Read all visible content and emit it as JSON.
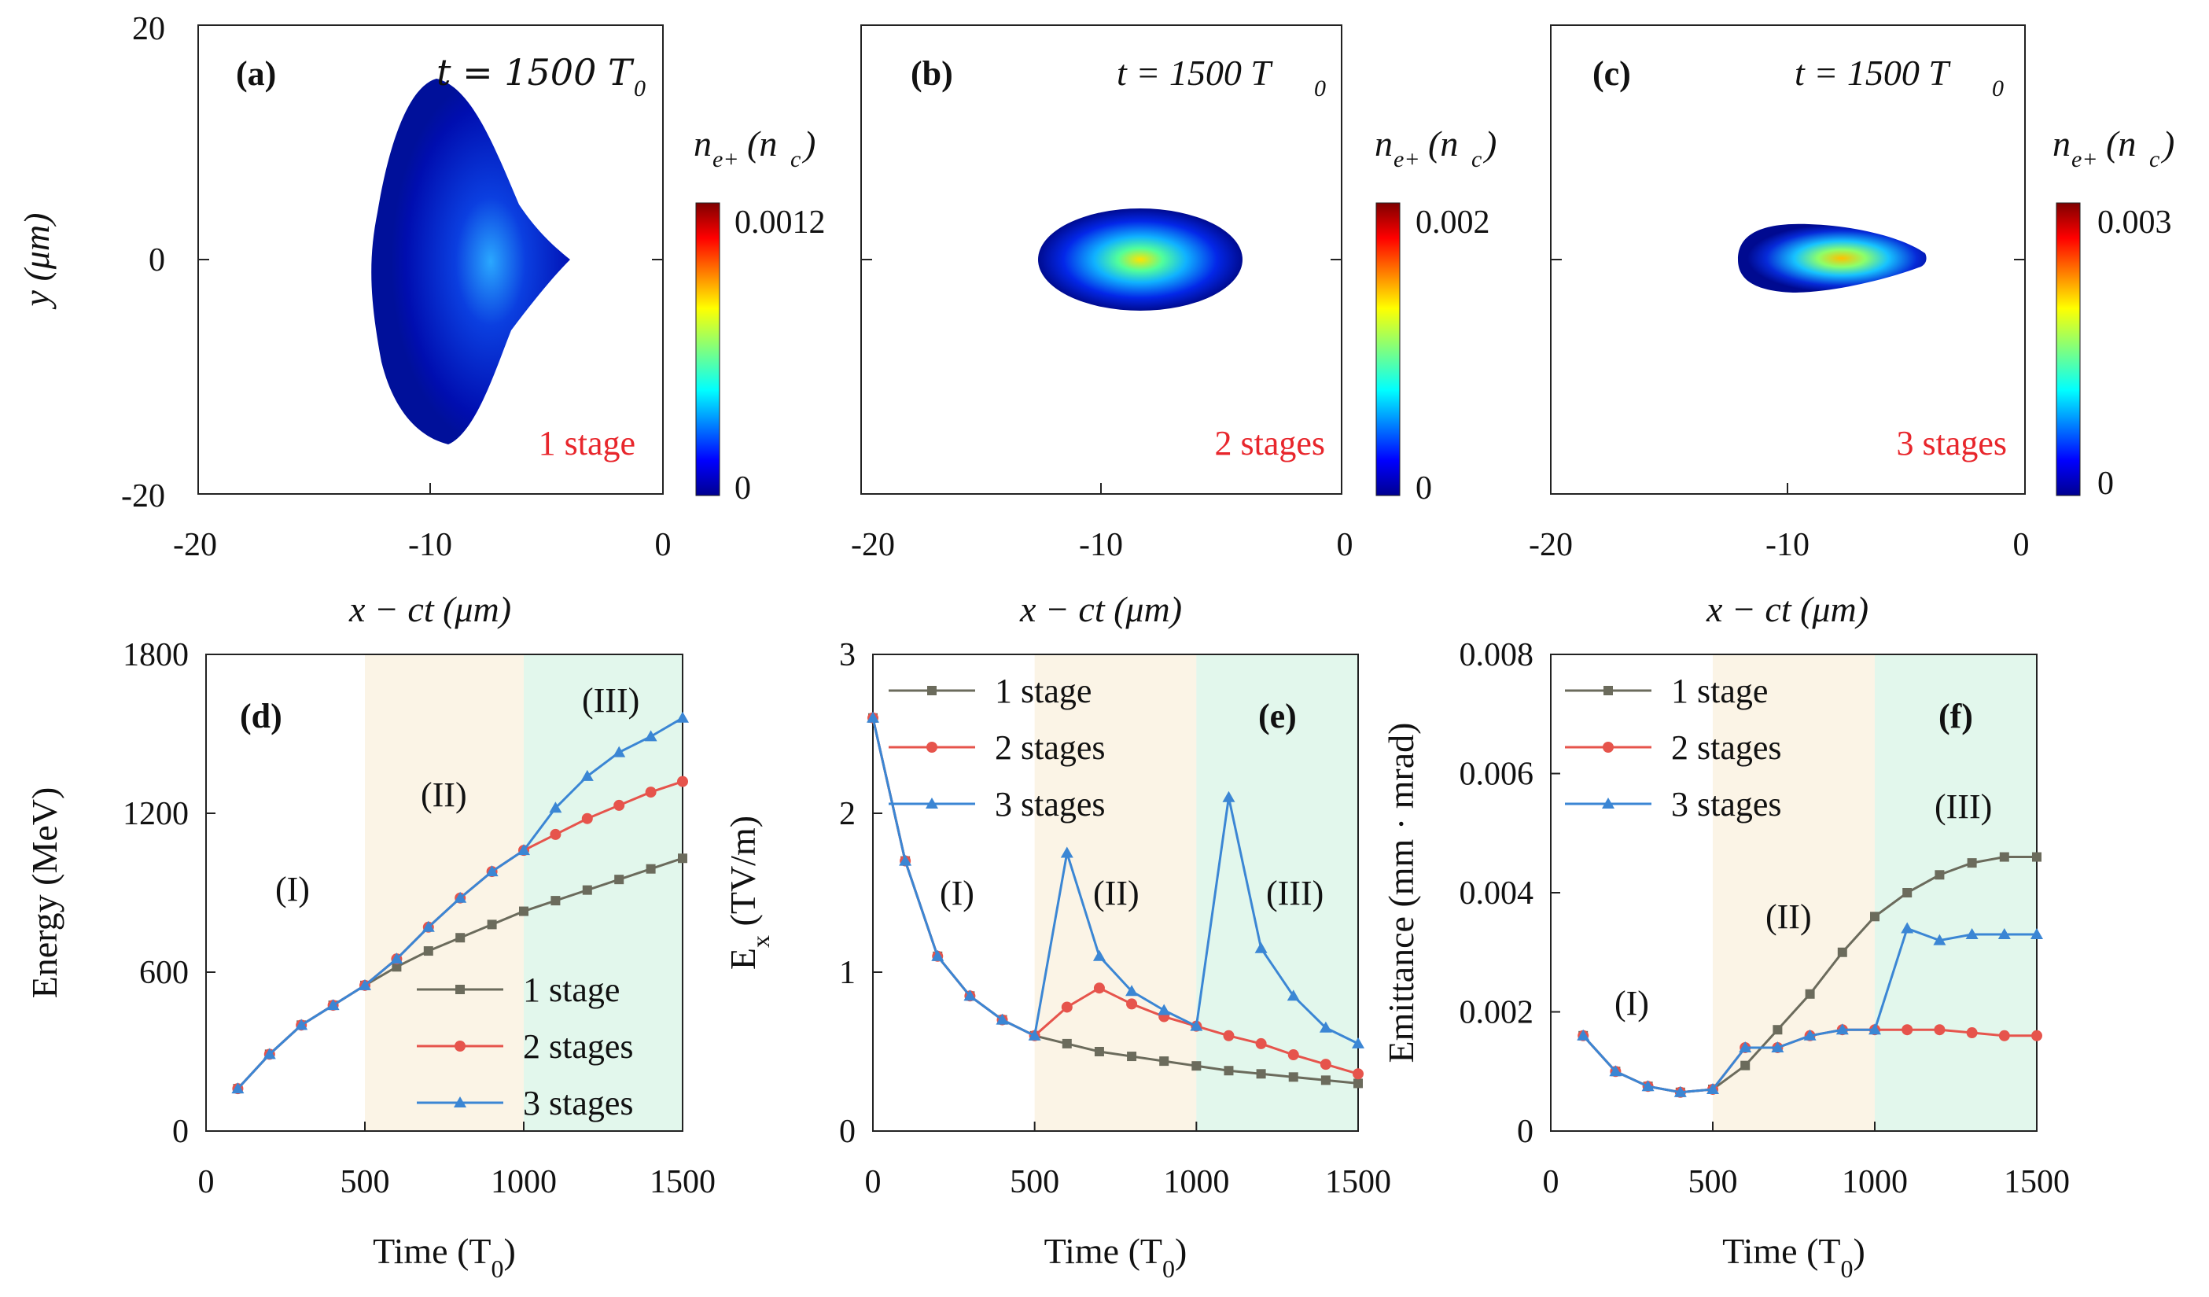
{
  "colors": {
    "stage1": "#6b6b5c",
    "stage2": "#e6544c",
    "stage3": "#3b86d4",
    "region2": "#fbf4e6",
    "region3": "#e2f7ec",
    "stage_text": "#e8262c"
  },
  "top_panels": [
    {
      "label": "(a)",
      "time": "t = 1500 T",
      "time_sub": "0",
      "stage": "1 stage",
      "cb_max": "0.0012",
      "cb_min": "0",
      "cb_title": "n",
      "cb_title_sub": "e+",
      "cb_title_unit": "(n",
      "cb_title_unit_sub": "c",
      "cb_title_close": ")"
    },
    {
      "label": "(b)",
      "time": "t = 1500 T",
      "time_sub": "0",
      "stage": "2 stages",
      "cb_max": "0.002",
      "cb_min": "0",
      "cb_title": "n",
      "cb_title_sub": "e+",
      "cb_title_unit": "(n",
      "cb_title_unit_sub": "c",
      "cb_title_close": ")"
    },
    {
      "label": "(c)",
      "time": "t = 1500 T",
      "time_sub": "0",
      "stage": "3 stages",
      "cb_max": "0.003",
      "cb_min": "0",
      "cb_title": "n",
      "cb_title_sub": "e+",
      "cb_title_unit": "(n",
      "cb_title_unit_sub": "c",
      "cb_title_close": ")"
    }
  ],
  "top_axes": {
    "xlabel": "x − ct (μm)",
    "ylabel": "y (μm)",
    "xticks": [
      "-20",
      "-10",
      "0"
    ],
    "yticks": [
      "20",
      "0",
      "-20"
    ]
  },
  "chart_data": [
    {
      "type": "line",
      "panel": "(d)",
      "xlabel": "Time (T",
      "xlabel_sub": "0",
      "xlabel_close": ")",
      "ylabel": "Energy (MeV)",
      "xlim": [
        0,
        1500
      ],
      "ylim": [
        0,
        1800
      ],
      "xticks": [
        "0",
        "500",
        "1000",
        "1500"
      ],
      "yticks": [
        "0",
        "600",
        "1200",
        "1800"
      ],
      "regions": [
        "(I)",
        "(II)",
        "(III)"
      ],
      "legend": "bottom-right",
      "series": [
        {
          "name": "1 stage",
          "x": [
            100,
            200,
            300,
            400,
            500,
            600,
            700,
            800,
            900,
            1000,
            1100,
            1200,
            1300,
            1400,
            1500
          ],
          "y": [
            160,
            290,
            400,
            475,
            550,
            620,
            680,
            730,
            780,
            830,
            870,
            910,
            950,
            990,
            1030
          ]
        },
        {
          "name": "2 stages",
          "x": [
            100,
            200,
            300,
            400,
            500,
            600,
            700,
            800,
            900,
            1000,
            1100,
            1200,
            1300,
            1400,
            1500
          ],
          "y": [
            160,
            290,
            400,
            475,
            550,
            650,
            770,
            880,
            980,
            1060,
            1120,
            1180,
            1230,
            1280,
            1320
          ]
        },
        {
          "name": "3 stages",
          "x": [
            100,
            200,
            300,
            400,
            500,
            600,
            700,
            800,
            900,
            1000,
            1100,
            1200,
            1300,
            1400,
            1500
          ],
          "y": [
            160,
            290,
            400,
            475,
            550,
            650,
            770,
            880,
            980,
            1060,
            1220,
            1340,
            1430,
            1490,
            1560
          ]
        }
      ]
    },
    {
      "type": "line",
      "panel": "(e)",
      "xlabel": "Time (T",
      "xlabel_sub": "0",
      "xlabel_close": ")",
      "ylabel": "E",
      "ylabel_sub": "x",
      "ylabel_unit": " (TV/m)",
      "xlim": [
        0,
        1500
      ],
      "ylim": [
        0,
        3
      ],
      "xticks": [
        "0",
        "500",
        "1000",
        "1500"
      ],
      "yticks": [
        "0",
        "1",
        "2",
        "3"
      ],
      "regions": [
        "(I)",
        "(II)",
        "(III)"
      ],
      "legend": "top-left",
      "series": [
        {
          "name": "1 stage",
          "x": [
            0,
            100,
            200,
            300,
            400,
            500,
            600,
            700,
            800,
            900,
            1000,
            1100,
            1200,
            1300,
            1400,
            1500
          ],
          "y": [
            2.6,
            1.7,
            1.1,
            0.85,
            0.7,
            0.6,
            0.55,
            0.5,
            0.47,
            0.44,
            0.41,
            0.38,
            0.36,
            0.34,
            0.32,
            0.3
          ]
        },
        {
          "name": "2 stages",
          "x": [
            0,
            100,
            200,
            300,
            400,
            500,
            600,
            700,
            800,
            900,
            1000,
            1100,
            1200,
            1300,
            1400,
            1500
          ],
          "y": [
            2.6,
            1.7,
            1.1,
            0.85,
            0.7,
            0.6,
            0.78,
            0.9,
            0.8,
            0.72,
            0.66,
            0.6,
            0.55,
            0.48,
            0.42,
            0.36
          ]
        },
        {
          "name": "3 stages",
          "x": [
            0,
            100,
            200,
            300,
            400,
            500,
            600,
            700,
            800,
            900,
            1000,
            1100,
            1200,
            1300,
            1400,
            1500
          ],
          "y": [
            2.6,
            1.7,
            1.1,
            0.85,
            0.7,
            0.6,
            1.75,
            1.1,
            0.88,
            0.76,
            0.66,
            2.1,
            1.15,
            0.85,
            0.65,
            0.55
          ]
        }
      ]
    },
    {
      "type": "line",
      "panel": "(f)",
      "xlabel": "Time (T",
      "xlabel_sub": "0",
      "xlabel_close": ")",
      "ylabel": "Emittance (mm · mrad)",
      "xlim": [
        0,
        1500
      ],
      "ylim": [
        0,
        0.008
      ],
      "xticks": [
        "0",
        "500",
        "1000",
        "1500"
      ],
      "yticks": [
        "0",
        "0.002",
        "0.004",
        "0.006",
        "0.008"
      ],
      "regions": [
        "(I)",
        "(II)",
        "(III)"
      ],
      "legend": "top-left",
      "series": [
        {
          "name": "1 stage",
          "x": [
            100,
            200,
            300,
            400,
            500,
            600,
            700,
            800,
            900,
            1000,
            1100,
            1200,
            1300,
            1400,
            1500
          ],
          "y": [
            0.0016,
            0.001,
            0.00075,
            0.00065,
            0.0007,
            0.0011,
            0.0017,
            0.0023,
            0.003,
            0.0036,
            0.004,
            0.0043,
            0.0045,
            0.0046,
            0.0046
          ]
        },
        {
          "name": "2 stages",
          "x": [
            100,
            200,
            300,
            400,
            500,
            600,
            700,
            800,
            900,
            1000,
            1100,
            1200,
            1300,
            1400,
            1500
          ],
          "y": [
            0.0016,
            0.001,
            0.00075,
            0.00065,
            0.0007,
            0.0014,
            0.0014,
            0.0016,
            0.0017,
            0.0017,
            0.0017,
            0.0017,
            0.00165,
            0.0016,
            0.0016
          ]
        },
        {
          "name": "3 stages",
          "x": [
            100,
            200,
            300,
            400,
            500,
            600,
            700,
            800,
            900,
            1000,
            1100,
            1200,
            1300,
            1400,
            1500
          ],
          "y": [
            0.0016,
            0.001,
            0.00075,
            0.00065,
            0.0007,
            0.0014,
            0.0014,
            0.0016,
            0.0017,
            0.0017,
            0.0034,
            0.0032,
            0.0033,
            0.0033,
            0.0033
          ]
        }
      ]
    }
  ]
}
